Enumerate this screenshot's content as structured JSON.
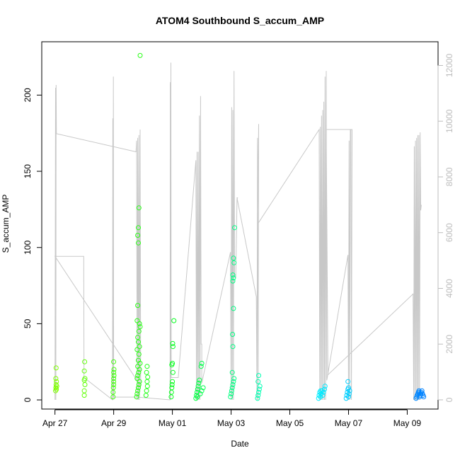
{
  "chart_data": {
    "type": "scatter",
    "title": "ATOM4 Southbound S_accum_AMP",
    "xlabel": "Date",
    "ylabel": "S_accum_AMP",
    "x_ticks": [
      "Apr 27",
      "Apr 29",
      "May 01",
      "May 03",
      "May 05",
      "May 07",
      "May 09"
    ],
    "x_tick_days": [
      0,
      2,
      4,
      6,
      8,
      10,
      12
    ],
    "xlim_days": [
      -0.45,
      13.05
    ],
    "y_ticks": [
      0,
      50,
      100,
      150,
      200
    ],
    "ylim": [
      -6,
      235
    ],
    "y2_ticks": [
      "0",
      "2000",
      "4000",
      "6000",
      "8000",
      "10000",
      "12000"
    ],
    "y2_tick_values": [
      0,
      2000,
      4000,
      6000,
      8000,
      10000,
      12000
    ],
    "y2lim": [
      -330,
      12850
    ],
    "grid": false,
    "series": [
      {
        "points": [
          [
            0.02,
            6
          ],
          [
            0.03,
            8
          ],
          [
            0.04,
            10
          ],
          [
            0.05,
            12
          ],
          [
            0.03,
            14
          ],
          [
            0.06,
            9
          ],
          [
            0.04,
            21
          ],
          [
            0.05,
            7
          ],
          [
            1.0,
            3
          ],
          [
            1.0,
            6
          ],
          [
            1.02,
            10
          ],
          [
            1.0,
            13
          ],
          [
            1.02,
            14
          ],
          [
            1.0,
            19
          ],
          [
            1.01,
            25
          ],
          [
            1.98,
            2
          ],
          [
            1.98,
            5
          ],
          [
            1.99,
            8
          ],
          [
            2.0,
            10
          ],
          [
            2.0,
            12
          ],
          [
            2.0,
            14
          ],
          [
            2.01,
            16
          ],
          [
            2.0,
            18
          ],
          [
            2.01,
            20
          ],
          [
            2.0,
            25
          ],
          [
            2.78,
            2
          ],
          [
            2.8,
            4
          ],
          [
            2.82,
            6
          ],
          [
            2.84,
            8
          ],
          [
            2.86,
            10
          ],
          [
            2.88,
            12
          ],
          [
            2.8,
            14
          ],
          [
            2.82,
            16
          ],
          [
            2.85,
            18
          ],
          [
            2.88,
            20
          ],
          [
            2.82,
            22
          ],
          [
            2.9,
            24
          ],
          [
            2.84,
            26
          ],
          [
            2.86,
            30
          ],
          [
            2.8,
            33
          ],
          [
            2.88,
            35
          ],
          [
            2.84,
            38
          ],
          [
            2.82,
            41
          ],
          [
            2.86,
            45
          ],
          [
            2.9,
            48
          ],
          [
            2.88,
            50
          ],
          [
            2.8,
            52
          ],
          [
            2.82,
            62
          ],
          [
            2.84,
            103
          ],
          [
            2.82,
            108
          ],
          [
            2.84,
            113
          ],
          [
            2.86,
            126
          ],
          [
            2.9,
            226
          ],
          [
            3.1,
            3
          ],
          [
            3.12,
            6
          ],
          [
            3.15,
            9
          ],
          [
            3.14,
            12
          ],
          [
            3.16,
            15
          ],
          [
            3.12,
            18
          ],
          [
            3.14,
            22
          ],
          [
            3.96,
            2
          ],
          [
            3.97,
            5
          ],
          [
            3.98,
            8
          ],
          [
            3.99,
            10
          ],
          [
            4.0,
            12
          ],
          [
            4.02,
            18
          ],
          [
            3.98,
            23
          ],
          [
            4.0,
            24
          ],
          [
            4.02,
            35
          ],
          [
            4.01,
            37
          ],
          [
            4.05,
            52
          ],
          [
            4.8,
            1
          ],
          [
            4.82,
            3
          ],
          [
            4.84,
            5
          ],
          [
            4.86,
            7
          ],
          [
            4.88,
            9
          ],
          [
            4.9,
            11
          ],
          [
            4.92,
            13
          ],
          [
            4.85,
            2
          ],
          [
            4.95,
            4
          ],
          [
            5.0,
            6
          ],
          [
            5.05,
            8
          ],
          [
            4.98,
            22
          ],
          [
            5.0,
            24
          ],
          [
            5.98,
            2
          ],
          [
            6.0,
            4
          ],
          [
            6.02,
            6
          ],
          [
            6.04,
            8
          ],
          [
            6.06,
            10
          ],
          [
            6.08,
            12
          ],
          [
            6.1,
            14
          ],
          [
            6.04,
            18
          ],
          [
            6.06,
            35
          ],
          [
            6.05,
            43
          ],
          [
            6.08,
            60
          ],
          [
            6.06,
            78
          ],
          [
            6.08,
            80
          ],
          [
            6.06,
            82
          ],
          [
            6.1,
            90
          ],
          [
            6.08,
            93
          ],
          [
            6.12,
            113
          ],
          [
            6.9,
            1
          ],
          [
            6.92,
            3
          ],
          [
            6.94,
            5
          ],
          [
            6.96,
            7
          ],
          [
            6.98,
            9
          ],
          [
            6.92,
            12
          ],
          [
            6.94,
            16
          ]
        ]
      },
      {
        "points": [
          [
            8.98,
            1
          ],
          [
            9.0,
            3
          ],
          [
            9.02,
            5
          ],
          [
            9.04,
            2
          ],
          [
            9.06,
            4
          ],
          [
            9.1,
            6
          ],
          [
            9.12,
            3
          ],
          [
            9.15,
            5
          ],
          [
            9.18,
            7
          ],
          [
            9.2,
            9
          ],
          [
            9.05,
            6
          ],
          [
            9.92,
            1
          ],
          [
            9.94,
            3
          ],
          [
            9.96,
            5
          ],
          [
            9.98,
            7
          ],
          [
            10.0,
            2
          ],
          [
            10.02,
            4
          ],
          [
            10.04,
            6
          ],
          [
            10.0,
            8
          ],
          [
            9.98,
            12
          ]
        ]
      },
      {
        "points": [
          [
            12.3,
            1
          ],
          [
            12.32,
            2
          ],
          [
            12.34,
            3
          ],
          [
            12.36,
            4
          ],
          [
            12.38,
            5
          ],
          [
            12.4,
            6
          ],
          [
            12.42,
            2
          ],
          [
            12.44,
            3
          ],
          [
            12.46,
            4
          ],
          [
            12.48,
            5
          ],
          [
            12.5,
            6
          ],
          [
            12.52,
            4
          ],
          [
            12.54,
            3
          ],
          [
            12.56,
            2
          ],
          [
            12.4,
            5
          ]
        ]
      }
    ],
    "line_series": {
      "points": [
        [
          0.0,
          0
        ],
        [
          0.02,
          11200
        ],
        [
          0.03,
          0
        ],
        [
          0.04,
          11300
        ],
        [
          0.05,
          9550
        ],
        [
          2.76,
          8900
        ],
        [
          2.78,
          9300
        ],
        [
          2.8,
          0
        ],
        [
          2.82,
          9400
        ],
        [
          2.84,
          0
        ],
        [
          2.86,
          9500
        ],
        [
          2.88,
          0
        ],
        [
          2.9,
          9700
        ],
        [
          2.92,
          500
        ],
        [
          0.0,
          5150
        ],
        [
          0.98,
          5150
        ],
        [
          0.99,
          800
        ],
        [
          1.96,
          0
        ],
        [
          1.97,
          10100
        ],
        [
          1.98,
          0
        ],
        [
          1.99,
          11600
        ],
        [
          2.0,
          100
        ],
        [
          2.8,
          100
        ],
        [
          3.92,
          0
        ],
        [
          3.93,
          11400
        ],
        [
          3.94,
          0
        ],
        [
          3.95,
          12100
        ],
        [
          3.96,
          800
        ],
        [
          4.2,
          800
        ],
        [
          4.8,
          8600
        ],
        [
          4.82,
          0
        ],
        [
          4.84,
          8900
        ],
        [
          4.86,
          0
        ],
        [
          4.88,
          8900
        ],
        [
          4.9,
          0
        ],
        [
          4.92,
          10200
        ],
        [
          4.94,
          0
        ],
        [
          4.96,
          10900
        ],
        [
          4.98,
          2000
        ],
        [
          5.0,
          2000
        ],
        [
          5.0,
          700
        ],
        [
          5.0,
          600
        ],
        [
          5.98,
          5300
        ],
        [
          6.0,
          0
        ],
        [
          6.02,
          10500
        ],
        [
          6.04,
          0
        ],
        [
          6.06,
          10400
        ],
        [
          6.08,
          0
        ],
        [
          6.1,
          11800
        ],
        [
          6.12,
          4400
        ],
        [
          6.16,
          4400
        ],
        [
          6.2,
          7200
        ],
        [
          6.22,
          7250
        ],
        [
          6.2,
          7250
        ],
        [
          6.86,
          3700
        ],
        [
          6.88,
          0
        ],
        [
          6.9,
          9400
        ],
        [
          6.92,
          0
        ],
        [
          6.94,
          9900
        ],
        [
          6.9,
          6300
        ],
        [
          9.0,
          9700
        ],
        [
          9.02,
          0
        ],
        [
          9.04,
          9800
        ],
        [
          9.06,
          0
        ],
        [
          9.08,
          10200
        ],
        [
          9.1,
          0
        ],
        [
          9.12,
          10400
        ],
        [
          9.14,
          0
        ],
        [
          9.16,
          10700
        ],
        [
          9.18,
          0
        ],
        [
          9.2,
          11600
        ],
        [
          9.22,
          0
        ],
        [
          9.24,
          11800
        ],
        [
          9.26,
          700
        ],
        [
          9.26,
          700
        ],
        [
          9.98,
          5200
        ],
        [
          10.0,
          0
        ],
        [
          10.02,
          9300
        ],
        [
          10.04,
          0
        ],
        [
          10.06,
          9700
        ],
        [
          10.08,
          9700
        ],
        [
          10.1,
          0
        ],
        [
          10.12,
          9700
        ],
        [
          10.04,
          9700
        ],
        [
          9.24,
          9700
        ],
        [
          9.3,
          900
        ],
        [
          12.2,
          3800
        ],
        [
          12.22,
          0
        ],
        [
          12.24,
          9100
        ],
        [
          12.26,
          0
        ],
        [
          12.28,
          9300
        ],
        [
          12.3,
          0
        ],
        [
          12.32,
          9400
        ],
        [
          12.34,
          0
        ],
        [
          12.36,
          9500
        ],
        [
          12.38,
          0
        ],
        [
          12.4,
          9500
        ],
        [
          12.42,
          0
        ],
        [
          12.44,
          9600
        ],
        [
          12.46,
          6800
        ],
        [
          12.48,
          7000
        ]
      ]
    },
    "colors": {
      "line": "#c8c8c8",
      "axis": "#000000",
      "right_axis": "#bdbdbd",
      "point_palette": [
        "#80ff00",
        "#00ff20",
        "#00ffff",
        "#0080ff"
      ]
    }
  }
}
